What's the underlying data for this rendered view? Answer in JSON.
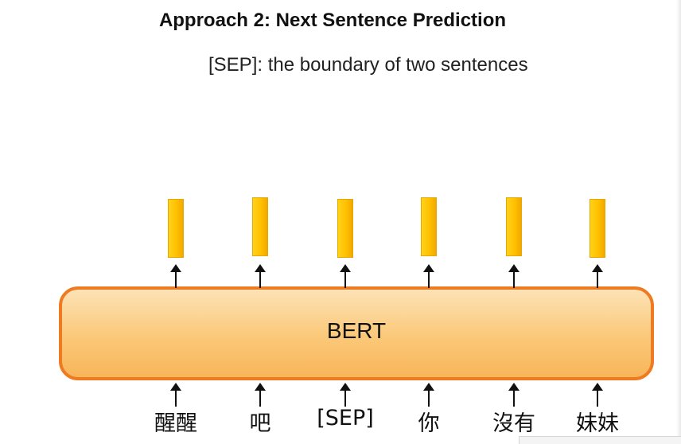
{
  "title": "Approach 2: Next Sentence Prediction",
  "subtitle": "[SEP]: the boundary of two sentences",
  "model_label": "BERT",
  "tokens": [
    "醒醒",
    "吧",
    "[SEP]",
    "你",
    "沒有",
    "妹妹"
  ],
  "colors": {
    "vector_fill": "#ffc000",
    "bert_border": "#ee7b22",
    "bert_fill": "#fbc878",
    "arrow": "#111111"
  }
}
